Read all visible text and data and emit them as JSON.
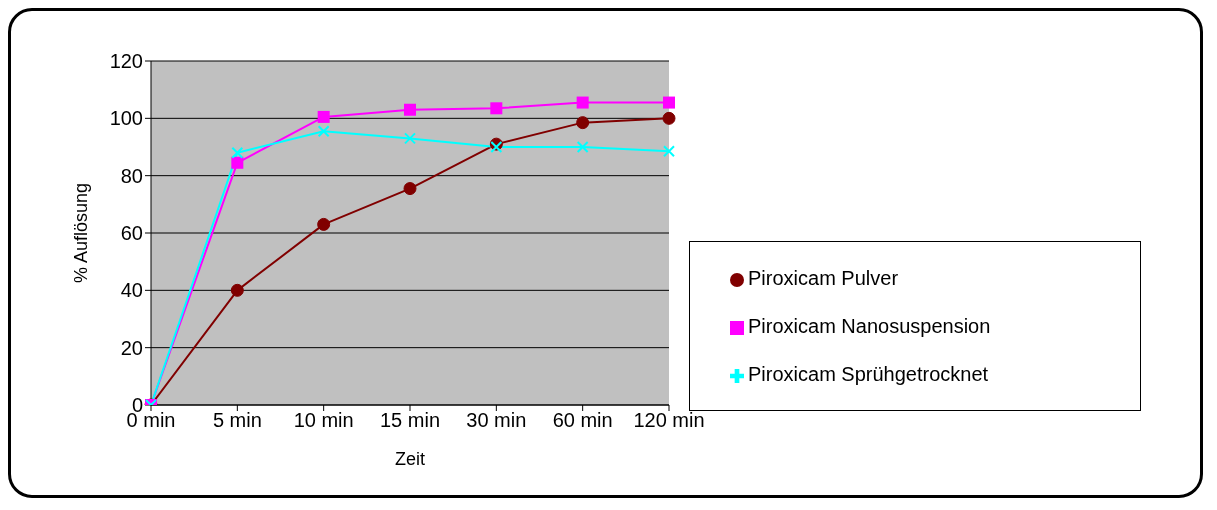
{
  "chart_data": {
    "type": "line",
    "xlabel": "Zeit",
    "ylabel": "% Auflösung",
    "categories": [
      "0 min",
      "5 min",
      "10 min",
      "15 min",
      "30 min",
      "60 min",
      "120 min"
    ],
    "ylim": [
      0,
      120
    ],
    "yticks": [
      0,
      20,
      40,
      60,
      80,
      100,
      120
    ],
    "grid": "y",
    "legend": "right",
    "series": [
      {
        "name": "Piroxicam Pulver",
        "color": "#800000",
        "marker": "circle",
        "values": [
          0,
          40,
          63,
          75.5,
          91,
          98.5,
          100
        ]
      },
      {
        "name": "Piroxicam Nanosuspension",
        "color": "#ff00ff",
        "marker": "square",
        "values": [
          0,
          84.5,
          100.5,
          103,
          103.5,
          105.5,
          105.5
        ]
      },
      {
        "name": "Piroxicam Sprühgetrocknet",
        "color": "#00ffff",
        "marker": "cross",
        "values": [
          0,
          88,
          95.5,
          93,
          90,
          90,
          88.5
        ]
      }
    ]
  }
}
